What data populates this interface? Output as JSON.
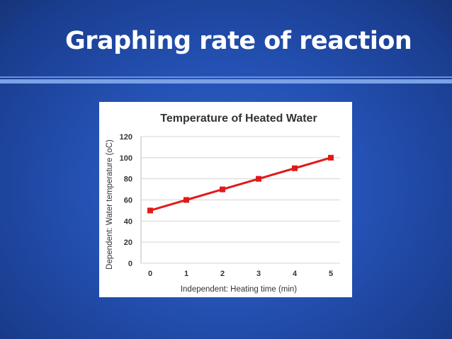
{
  "slide": {
    "title": "Graphing rate of reaction"
  },
  "colors": {
    "background": "#2451b3",
    "series": "#e01a1a",
    "rule": "#7aa2e6"
  },
  "chart_data": {
    "type": "line",
    "title": "Temperature of Heated Water",
    "xlabel": "Independent:   Heating time (min)",
    "ylabel": "Dependent:  Water temperature (oC)",
    "x": [
      0,
      1,
      2,
      3,
      4,
      5
    ],
    "x_tick_labels": [
      "0",
      "1",
      "2",
      "3",
      "4",
      "5"
    ],
    "y_ticks": [
      0,
      20,
      40,
      60,
      80,
      100,
      120
    ],
    "ylim": [
      0,
      120
    ],
    "grid": true,
    "legend": "none",
    "series": [
      {
        "name": "Water temperature",
        "values": [
          50,
          60,
          70,
          80,
          90,
          100
        ]
      }
    ]
  }
}
